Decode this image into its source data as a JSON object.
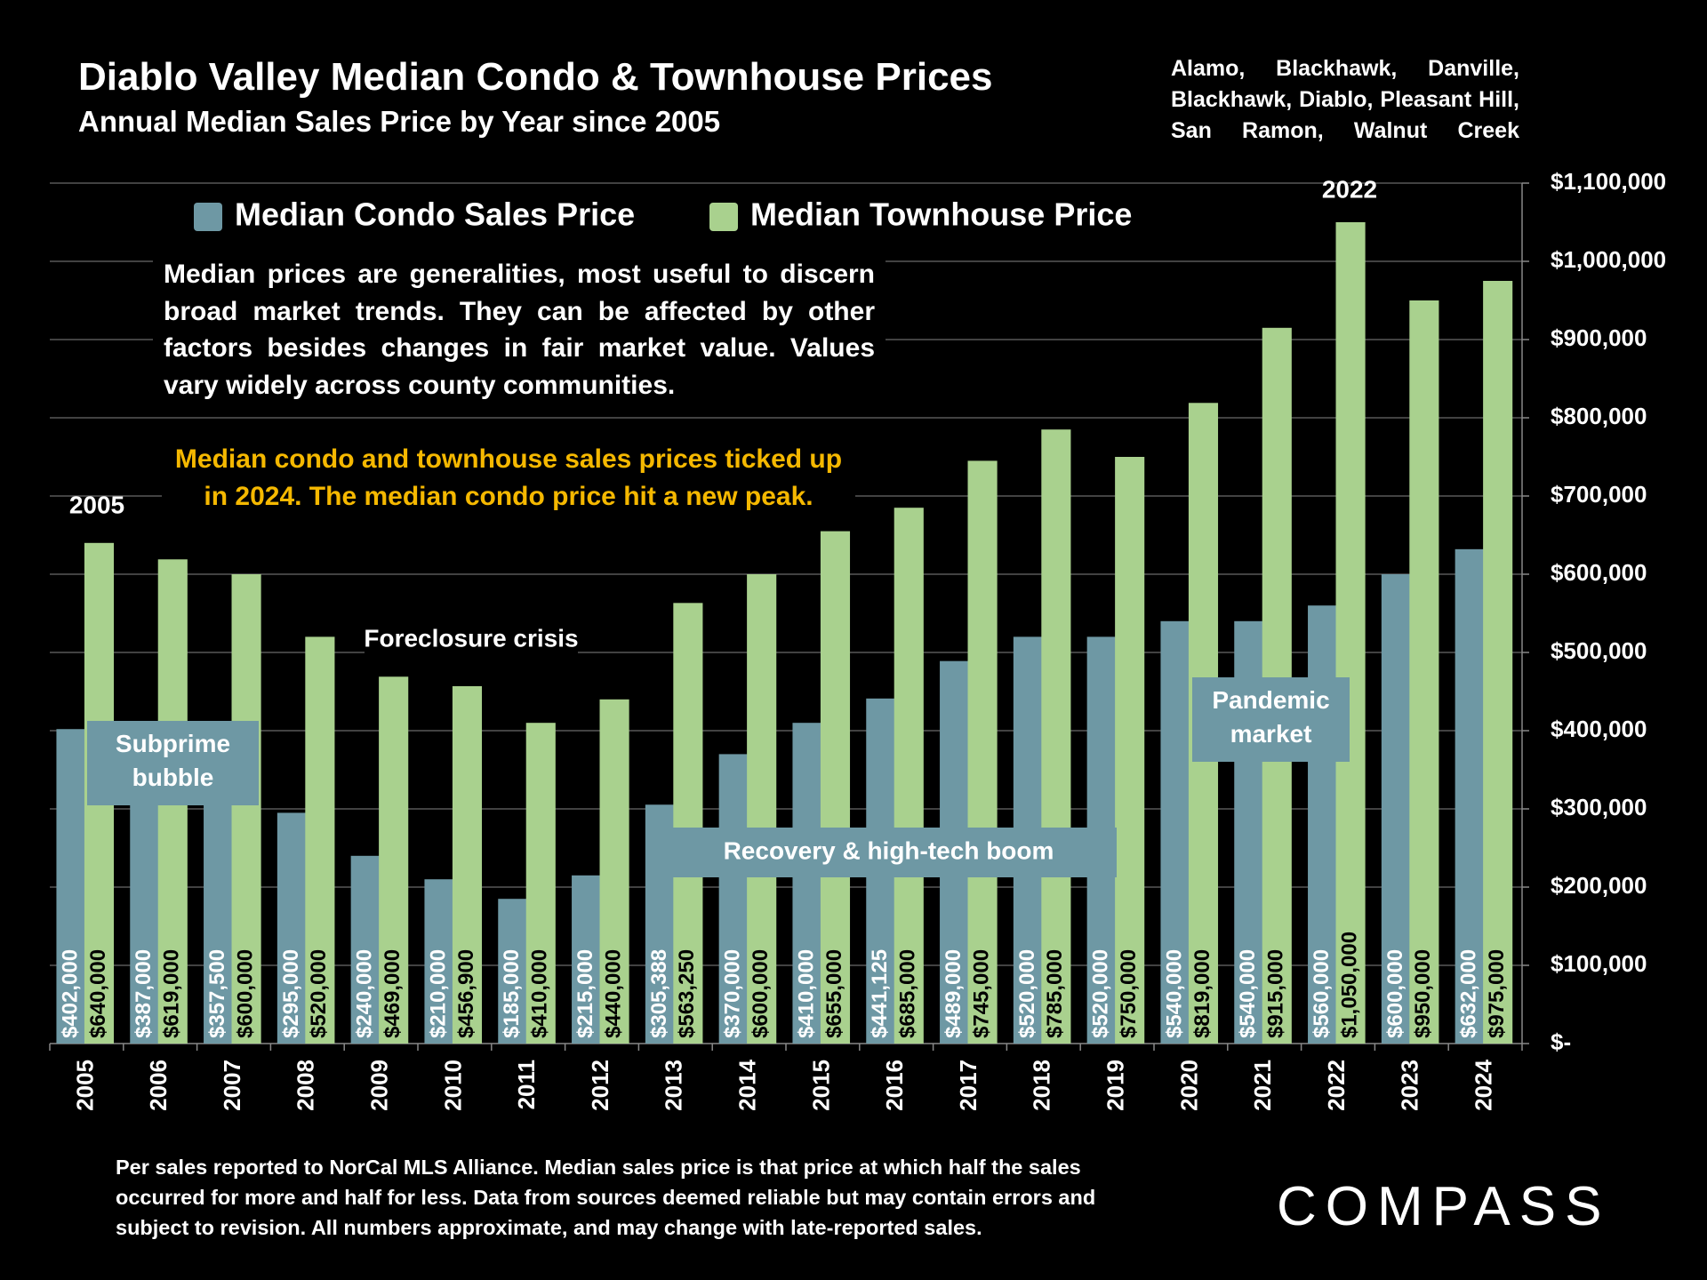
{
  "chart_data": {
    "type": "bar",
    "title": "Diablo Valley Median Condo & Townhouse Prices",
    "subtitle": "Annual Median Sales Price by Year since 2005",
    "cities": "Alamo, Blackhawk, Danville, Blackhawk, Diablo, Pleasant Hill, San Ramon, Walnut Creek",
    "note": "Median prices are generalities, most useful to discern broad market trends. They can be affected by other factors besides changes in fair market value. Values vary widely across county communities.",
    "highlight": "Median condo and townhouse sales prices ticked up in 2024. The median condo price hit a new peak.",
    "footnote": "Per sales reported to NorCal MLS Alliance. Median sales price is that price at which half the sales occurred for more and half for less. Data from sources deemed reliable but may contain errors and subject to revision. All numbers approximate, and may change with late-reported sales.",
    "logo": "COMPASS",
    "annotations": [
      "2005",
      "2022",
      "Foreclosure crisis",
      "Subprime bubble",
      "Pandemic market",
      "Recovery & high-tech boom"
    ],
    "categories": [
      "2005",
      "2006",
      "2007",
      "2008",
      "2009",
      "2010",
      "2011",
      "2012",
      "2013",
      "2014",
      "2015",
      "2016",
      "2017",
      "2018",
      "2019",
      "2020",
      "2021",
      "2022",
      "2023",
      "2024"
    ],
    "series": [
      {
        "name": "Median Condo Sales Price",
        "color": "#6e98a4",
        "values": [
          402000,
          387000,
          357500,
          295000,
          240000,
          210000,
          185000,
          215000,
          305388,
          370000,
          410000,
          441125,
          489000,
          520000,
          520000,
          540000,
          540000,
          560000,
          600000,
          632000
        ],
        "value_labels": [
          "$402,000",
          "$387,000",
          "$357,500",
          "$295,000",
          "$240,000",
          "$210,000",
          "$185,000",
          "$215,000",
          "$305,388",
          "$370,000",
          "$410,000",
          "$441,125",
          "$489,000",
          "$520,000",
          "$520,000",
          "$540,000",
          "$540,000",
          "$560,000",
          "$600,000",
          "$632,000"
        ]
      },
      {
        "name": "Median Townhouse Price",
        "color": "#a9d18e",
        "values": [
          640000,
          619000,
          600000,
          520000,
          469000,
          456900,
          410000,
          440000,
          563250,
          600000,
          655000,
          685000,
          745000,
          785000,
          750000,
          819000,
          915000,
          1050000,
          950000,
          975000
        ],
        "value_labels": [
          "$640,000",
          "$619,000",
          "$600,000",
          "$520,000",
          "$469,000",
          "$456,900",
          "$410,000",
          "$440,000",
          "$563,250",
          "$600,000",
          "$655,000",
          "$685,000",
          "$745,000",
          "$785,000",
          "$750,000",
          "$819,000",
          "$915,000",
          "$1,050,000",
          "$950,000",
          "$975,000"
        ]
      }
    ],
    "ylim": [
      0,
      1100000
    ],
    "yticks": [
      {
        "value": 0,
        "label": "$-"
      },
      {
        "value": 100000,
        "label": "$100,000"
      },
      {
        "value": 200000,
        "label": "$200,000"
      },
      {
        "value": 300000,
        "label": "$300,000"
      },
      {
        "value": 400000,
        "label": "$400,000"
      },
      {
        "value": 500000,
        "label": "$500,000"
      },
      {
        "value": 600000,
        "label": "$600,000"
      },
      {
        "value": 700000,
        "label": "$700,000"
      },
      {
        "value": 800000,
        "label": "$800,000"
      },
      {
        "value": 900000,
        "label": "$900,000"
      },
      {
        "value": 1000000,
        "label": "$1,000,000"
      },
      {
        "value": 1100000,
        "label": "$1,100,000"
      }
    ],
    "grid": true,
    "legend": "top"
  }
}
